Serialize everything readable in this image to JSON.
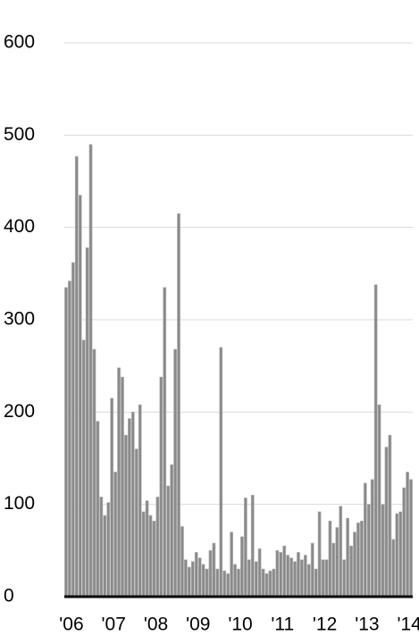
{
  "chart_data": {
    "type": "bar",
    "categories": [
      "'06",
      null,
      null,
      null,
      null,
      null,
      null,
      null,
      null,
      null,
      null,
      null,
      "'07",
      null,
      null,
      null,
      null,
      null,
      null,
      null,
      null,
      null,
      null,
      null,
      "'08",
      null,
      null,
      null,
      null,
      null,
      null,
      null,
      null,
      null,
      null,
      null,
      "'09",
      null,
      null,
      null,
      null,
      null,
      null,
      null,
      null,
      null,
      null,
      null,
      "'10",
      null,
      null,
      null,
      null,
      null,
      null,
      null,
      null,
      null,
      null,
      null,
      "'11",
      null,
      null,
      null,
      null,
      null,
      null,
      null,
      null,
      null,
      null,
      null,
      "'12",
      null,
      null,
      null,
      null,
      null,
      null,
      null,
      null,
      null,
      null,
      null,
      "'13",
      null,
      null,
      null,
      null,
      null,
      null,
      null,
      null,
      null,
      null,
      null,
      "'14",
      null,
      null
    ],
    "values": [
      335,
      342,
      362,
      477,
      435,
      278,
      378,
      490,
      268,
      190,
      108,
      88,
      102,
      215,
      135,
      248,
      238,
      175,
      193,
      200,
      160,
      208,
      92,
      104,
      88,
      82,
      108,
      238,
      335,
      120,
      143,
      268,
      415,
      76,
      40,
      32,
      38,
      48,
      42,
      35,
      30,
      50,
      58,
      30,
      270,
      28,
      25,
      70,
      35,
      30,
      65,
      107,
      40,
      110,
      38,
      52,
      30,
      25,
      28,
      30,
      50,
      48,
      55,
      45,
      42,
      38,
      48,
      40,
      45,
      35,
      58,
      30,
      92,
      40,
      40,
      82,
      58,
      75,
      98,
      40,
      85,
      55,
      70,
      80,
      82,
      123,
      100,
      127,
      338,
      208,
      100,
      162,
      175,
      62,
      90,
      92,
      118,
      135,
      127
    ],
    "color": "#8a8a8a",
    "ylim": [
      0,
      600
    ],
    "yticks": [
      0,
      100,
      200,
      300,
      400,
      500,
      600
    ],
    "grid": true
  }
}
